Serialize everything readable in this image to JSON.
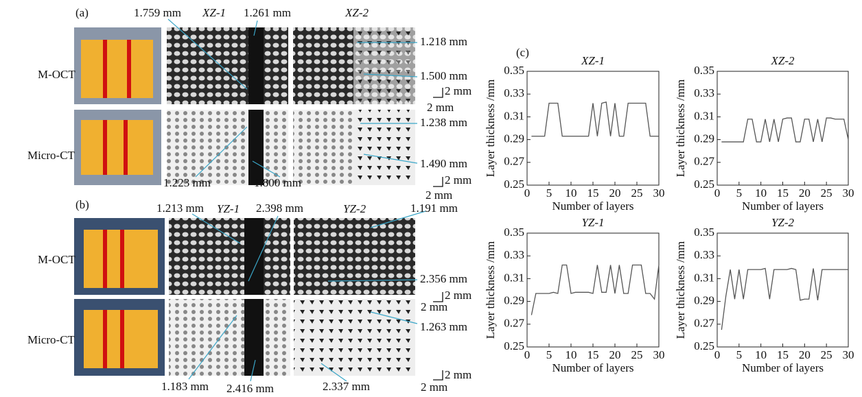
{
  "figure": {
    "panel_a": "(a)",
    "panel_b": "(b)",
    "panel_c": "(c)",
    "row_labels": [
      "M-OCT",
      "Micro-CT",
      "M-OCT",
      "Micro-CT"
    ],
    "image_titles": [
      "XZ-1",
      "XZ-2",
      "YZ-1",
      "YZ-2"
    ],
    "measurements": [
      "1.759 mm",
      "1.261 mm",
      "1.218 mm",
      "1.500 mm",
      "1.238 mm",
      "1.490 mm",
      "1.223 mm",
      "1.800 mm",
      "1.213 mm",
      "2.398 mm",
      "1.191 mm",
      "2.356 mm",
      "1.263 mm",
      "1.183 mm",
      "2.416 mm",
      "2.337 mm"
    ],
    "scale_bars": [
      "2 mm",
      "2 mm",
      "2 mm",
      "2 mm",
      "2 mm",
      "2 mm",
      "2 mm",
      "2 mm"
    ]
  },
  "chart_data": [
    {
      "type": "line",
      "title": "XZ-1",
      "x_label": "Number of layers",
      "y_label": "Layer thickness /mm",
      "xlim": [
        0,
        30
      ],
      "xticks": [
        0,
        5,
        10,
        15,
        20,
        25,
        30
      ],
      "ylim": [
        0.25,
        0.35
      ],
      "yticks": [
        0.25,
        0.27,
        0.29,
        0.31,
        0.33,
        0.35
      ],
      "color": "#555555",
      "x": [
        1,
        2,
        3,
        4,
        5,
        6,
        7,
        8,
        9,
        10,
        11,
        12,
        13,
        14,
        15,
        16,
        17,
        18,
        19,
        20,
        21,
        22,
        23,
        24,
        25,
        26,
        27,
        28,
        29,
        30
      ],
      "values": [
        0.293,
        0.293,
        0.293,
        0.293,
        0.322,
        0.322,
        0.322,
        0.293,
        0.293,
        0.293,
        0.293,
        0.293,
        0.293,
        0.293,
        0.322,
        0.293,
        0.322,
        0.323,
        0.293,
        0.322,
        0.293,
        0.293,
        0.322,
        0.322,
        0.322,
        0.322,
        0.322,
        0.293,
        0.293,
        0.293
      ]
    },
    {
      "type": "line",
      "title": "XZ-2",
      "x_label": "Number of layers",
      "y_label": "Layer thickness /mm",
      "xlim": [
        0,
        30
      ],
      "xticks": [
        0,
        5,
        10,
        15,
        20,
        25,
        30
      ],
      "ylim": [
        0.25,
        0.35
      ],
      "yticks": [
        0.25,
        0.27,
        0.29,
        0.31,
        0.33,
        0.35
      ],
      "color": "#555555",
      "x": [
        1,
        2,
        3,
        4,
        5,
        6,
        7,
        8,
        9,
        10,
        11,
        12,
        13,
        14,
        15,
        16,
        17,
        18,
        19,
        20,
        21,
        22,
        23,
        24,
        25,
        26,
        27,
        28,
        29,
        30
      ],
      "values": [
        0.288,
        0.288,
        0.288,
        0.288,
        0.288,
        0.288,
        0.308,
        0.308,
        0.288,
        0.288,
        0.308,
        0.288,
        0.308,
        0.288,
        0.308,
        0.309,
        0.309,
        0.288,
        0.288,
        0.308,
        0.308,
        0.288,
        0.308,
        0.288,
        0.309,
        0.309,
        0.308,
        0.308,
        0.308,
        0.29
      ]
    },
    {
      "type": "line",
      "title": "YZ-1",
      "x_label": "Number of layers",
      "y_label": "Layer thickness /mm",
      "xlim": [
        0,
        30
      ],
      "xticks": [
        0,
        5,
        10,
        15,
        20,
        25,
        30
      ],
      "ylim": [
        0.25,
        0.35
      ],
      "yticks": [
        0.25,
        0.27,
        0.29,
        0.31,
        0.33,
        0.35
      ],
      "color": "#555555",
      "x": [
        1,
        2,
        3,
        4,
        5,
        6,
        7,
        8,
        9,
        10,
        11,
        12,
        13,
        14,
        15,
        16,
        17,
        18,
        19,
        20,
        21,
        22,
        23,
        24,
        25,
        26,
        27,
        28,
        29,
        30
      ],
      "values": [
        0.278,
        0.297,
        0.297,
        0.297,
        0.297,
        0.298,
        0.297,
        0.322,
        0.322,
        0.297,
        0.298,
        0.298,
        0.298,
        0.298,
        0.297,
        0.322,
        0.298,
        0.298,
        0.322,
        0.297,
        0.322,
        0.297,
        0.297,
        0.322,
        0.322,
        0.322,
        0.297,
        0.297,
        0.292,
        0.322
      ]
    },
    {
      "type": "line",
      "title": "YZ-2",
      "x_label": "Number of layers",
      "y_label": "Layer thickness /mm",
      "xlim": [
        0,
        30
      ],
      "xticks": [
        0,
        5,
        10,
        15,
        20,
        25,
        30
      ],
      "ylim": [
        0.25,
        0.35
      ],
      "yticks": [
        0.25,
        0.27,
        0.29,
        0.31,
        0.33,
        0.35
      ],
      "color": "#555555",
      "x": [
        1,
        2,
        3,
        4,
        5,
        6,
        7,
        8,
        9,
        10,
        11,
        12,
        13,
        14,
        15,
        16,
        17,
        18,
        19,
        20,
        21,
        22,
        23,
        24,
        25,
        26,
        27,
        28,
        29,
        30
      ],
      "values": [
        0.265,
        0.295,
        0.318,
        0.292,
        0.318,
        0.292,
        0.318,
        0.318,
        0.318,
        0.318,
        0.319,
        0.292,
        0.318,
        0.318,
        0.318,
        0.318,
        0.319,
        0.318,
        0.291,
        0.292,
        0.292,
        0.319,
        0.291,
        0.318,
        0.318,
        0.318,
        0.318,
        0.318,
        0.318,
        0.318
      ]
    }
  ]
}
